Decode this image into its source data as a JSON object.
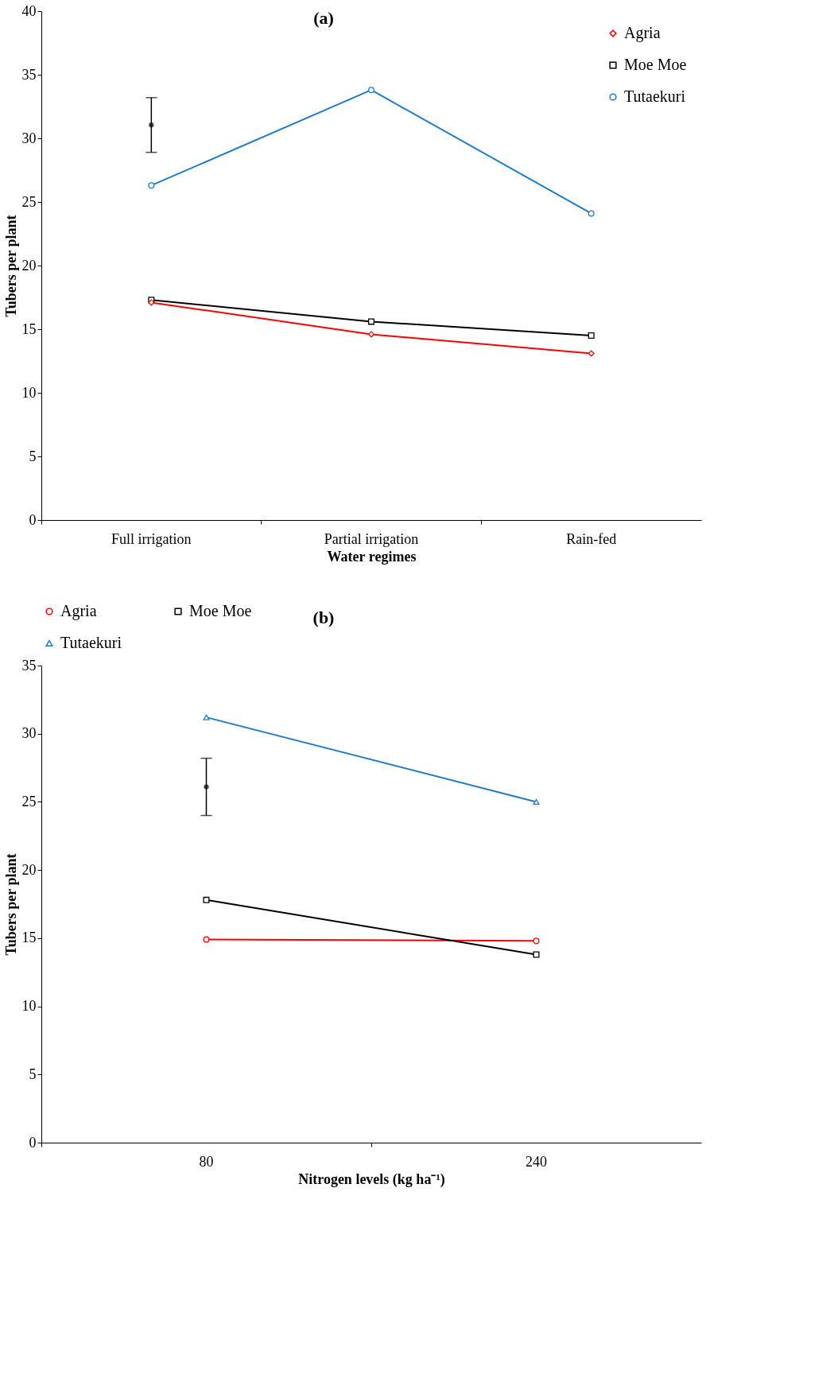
{
  "chart_data": [
    {
      "type": "line",
      "title": "(a)",
      "xlabel": "Water regimes",
      "ylabel": "Tubers per plant",
      "categories": [
        "Full irrigation",
        "Partial irrigation",
        "Rain-fed"
      ],
      "ylim": [
        0,
        40
      ],
      "yticks": [
        0,
        5,
        10,
        15,
        20,
        25,
        30,
        35,
        40
      ],
      "grid": false,
      "legend": "top right",
      "series": [
        {
          "name": "Agria",
          "color": "#ff0000",
          "marker": "diamond",
          "values": [
            17.1,
            14.6,
            13.1
          ]
        },
        {
          "name": "Moe Moe",
          "color": "#000000",
          "marker": "square",
          "values": [
            17.3,
            15.6,
            14.5
          ]
        },
        {
          "name": "Tutaekuri",
          "color": "#1f7bc8",
          "marker": "circle",
          "values": [
            26.3,
            33.8,
            24.1
          ]
        },
        {
          "type": "scatter",
          "color": "#000000",
          "marker": "circle",
          "values": [
            31.05,
            null,
            null
          ],
          "errors": [
            2.15,
            null,
            null
          ]
        }
      ]
    },
    {
      "type": "line",
      "title": "(b)",
      "xlabel": "Nitrogen levels (kg ha⁻¹)",
      "ylabel": "Tubers per plant",
      "categories": [
        "80",
        "240"
      ],
      "ylim": [
        0,
        35
      ],
      "yticks": [
        0,
        5,
        10,
        15,
        20,
        25,
        30,
        35
      ],
      "grid": false,
      "legend": "top",
      "series": [
        {
          "name": "Agria",
          "color": "#ff0000",
          "marker": "circle",
          "values": [
            14.9,
            14.8
          ]
        },
        {
          "name": "Moe Moe",
          "color": "#000000",
          "marker": "square",
          "values": [
            17.8,
            13.8
          ]
        },
        {
          "name": "Tutaekuri",
          "color": "#1f7bc8",
          "marker": "triangle",
          "values": [
            31.2,
            25.0
          ]
        },
        {
          "type": "scatter",
          "color": "#000000",
          "marker": "circle",
          "values": [
            26.1,
            null
          ],
          "errors": [
            2.1,
            null
          ]
        }
      ]
    }
  ]
}
